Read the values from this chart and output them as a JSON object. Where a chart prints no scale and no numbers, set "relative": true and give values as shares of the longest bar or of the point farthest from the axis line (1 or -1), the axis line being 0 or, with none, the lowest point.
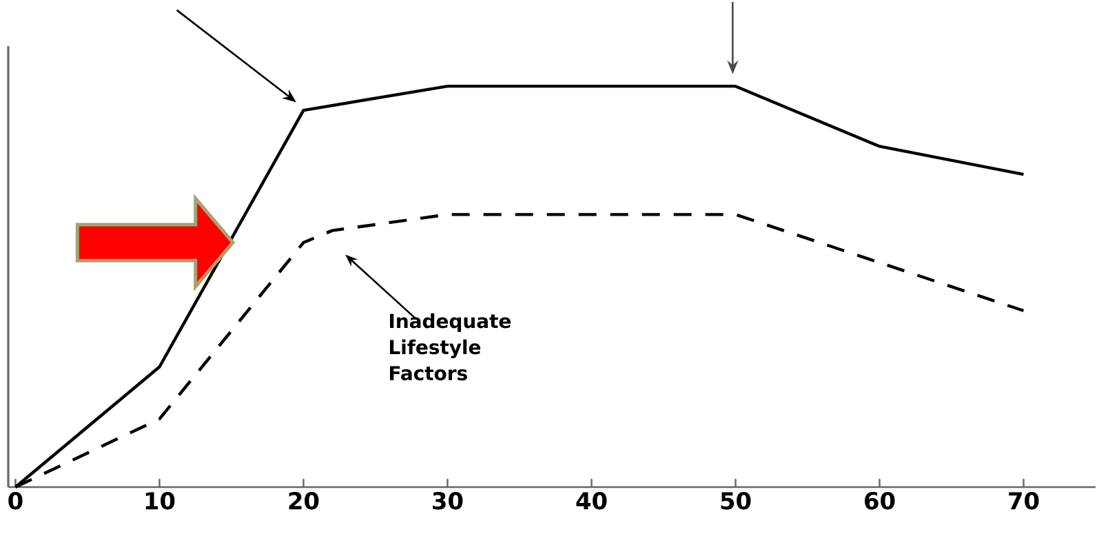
{
  "chart_data": {
    "type": "line",
    "relative": true,
    "x": [
      0,
      10,
      20,
      30,
      50,
      60,
      70
    ],
    "series": [
      {
        "color": "#000000",
        "line_style": "solid",
        "values": [
          0,
          0.3,
          0.94,
          1,
          1,
          0.85,
          0.78
        ]
      },
      {
        "color": "#000000",
        "line_style": "dashed",
        "x": [
          0,
          10,
          20,
          22,
          30,
          50,
          70
        ],
        "values": [
          0,
          0.17,
          0.61,
          0.64,
          0.68,
          0.68,
          0.44
        ]
      }
    ],
    "xlim": [
      -0.5,
      75
    ],
    "xticks": [
      0,
      10,
      20,
      30,
      40,
      50,
      60,
      70
    ],
    "annotations": [
      "Inadequate Lifestyle Factors"
    ],
    "grid": false,
    "marker": "none"
  }
}
